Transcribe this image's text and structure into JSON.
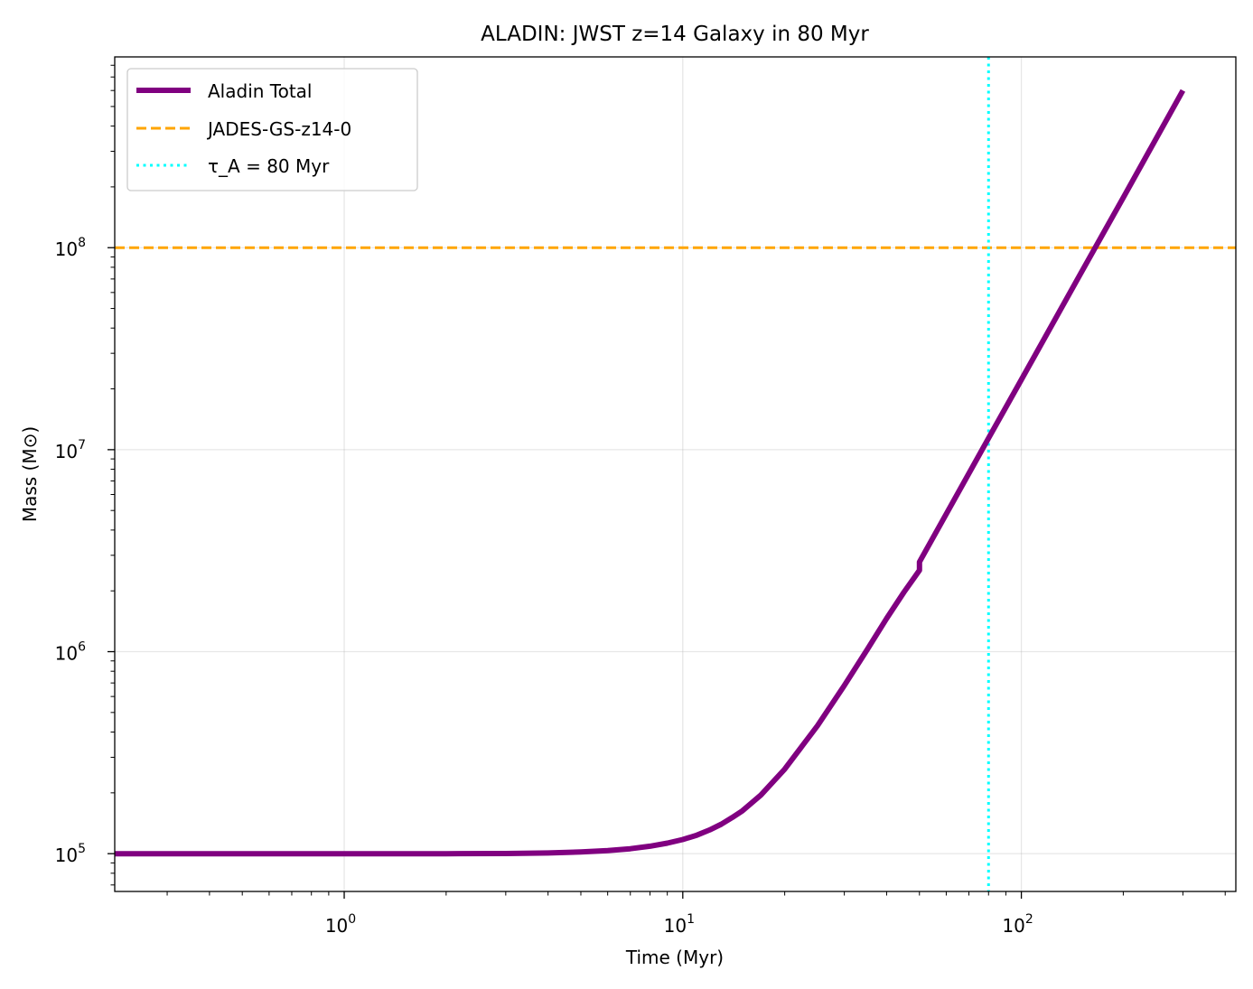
{
  "chart_data": {
    "type": "line",
    "title": "ALADIN: JWST z=14 Galaxy in 80 Myr",
    "xlabel": "Time (Myr)",
    "ylabel": "Mass (M⊙)",
    "x_scale": "log",
    "y_scale": "log",
    "xlim": [
      0.21,
      430
    ],
    "ylim": [
      65000,
      880000000
    ],
    "grid": true,
    "legend_position": "upper-left",
    "x_ticks": [
      {
        "value": 1,
        "base": "10",
        "exp": "0"
      },
      {
        "value": 10,
        "base": "10",
        "exp": "1"
      },
      {
        "value": 100,
        "base": "10",
        "exp": "2"
      }
    ],
    "y_ticks": [
      {
        "value": 100000,
        "base": "10",
        "exp": "5"
      },
      {
        "value": 1000000,
        "base": "10",
        "exp": "6"
      },
      {
        "value": 10000000,
        "base": "10",
        "exp": "7"
      },
      {
        "value": 100000000,
        "base": "10",
        "exp": "8"
      }
    ],
    "series": [
      {
        "name": "Aladin Total",
        "style": "solid",
        "color": "#800080",
        "x": [
          0.21,
          0.5,
          1,
          2,
          3,
          4,
          5,
          6,
          7,
          8,
          9,
          10,
          11,
          12,
          13,
          14,
          15,
          17,
          20,
          25,
          30,
          35,
          40,
          45,
          50,
          50,
          60,
          80,
          100,
          150,
          200,
          300
        ],
        "y": [
          100000,
          100000,
          100000,
          100000,
          100200,
          100800,
          101900,
          103500,
          105800,
          108900,
          112800,
          117500,
          123500,
          131000,
          140000,
          151000,
          163000,
          195000,
          262000,
          430000,
          680000,
          1020000,
          1460000,
          1970000,
          2530000,
          2780000,
          4800000,
          11400000,
          22200000,
          75000000,
          177000000,
          600000000
        ]
      }
    ],
    "reference_lines": [
      {
        "name": "JADES-GS-z14-0",
        "orientation": "horizontal",
        "value": 100000000,
        "style": "dashed",
        "color": "#FFA500"
      },
      {
        "name": "τ_A = 80 Myr",
        "orientation": "vertical",
        "value": 80,
        "style": "dotted",
        "color": "#00FFFF"
      }
    ]
  }
}
